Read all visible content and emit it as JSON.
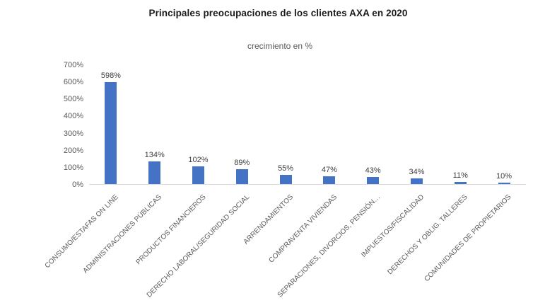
{
  "chart_data": {
    "type": "bar",
    "title": "Principales preocupaciones de los clientes AXA en 2020",
    "subtitle": "crecimiento en %",
    "categories": [
      "CONSUMO/ESTAFAS ON LINE",
      "ADMINISTRACIONES PÚBLICAS",
      "PRODUCTOS FINANCIEROS",
      "DERECHO LABORAL/SEGURIDAD SOCIAL",
      "ARRENDAMIENTOS",
      "COMPRAVENTA VIVIENDAS",
      "SEPARACIONES, DIVORCIOS, PENSIÓN…",
      "IMPUESTOS/FISCALIDAD",
      "DERECHOS Y OBLIG. TALLERES",
      "COMUNIDADES DE PROPIETARIOS"
    ],
    "values": [
      598,
      134,
      102,
      89,
      55,
      47,
      43,
      34,
      11,
      10
    ],
    "data_labels": [
      "598%",
      "134%",
      "102%",
      "89%",
      "55%",
      "47%",
      "43%",
      "34%",
      "11%",
      "10%"
    ],
    "xlabel": "",
    "ylabel": "",
    "ylim": [
      0,
      700
    ],
    "ytick_step": 100,
    "ytick_labels": [
      "0%",
      "100%",
      "200%",
      "300%",
      "400%",
      "500%",
      "600%",
      "700%"
    ],
    "grid": false,
    "legend": "none",
    "category_label_rotation_deg": -45
  },
  "colors": {
    "bar_fill": "#4472C4",
    "axis_line": "#d9d9d9",
    "title_text": "#1a1a1a",
    "subtitle_text": "#595959",
    "tick_text": "#595959",
    "value_label_text": "#404040",
    "background": "#ffffff"
  }
}
